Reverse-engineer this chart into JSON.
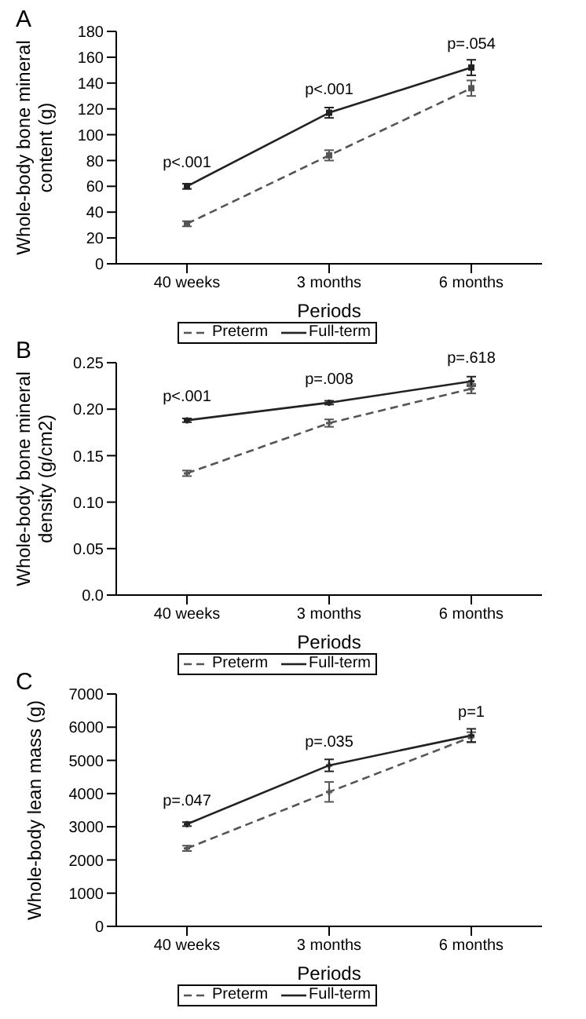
{
  "chart_data": [
    {
      "type": "line",
      "title": "A",
      "xlabel": "Periods",
      "ylabel": "Whole-body bone mineral content (g)",
      "categories": [
        "40 weeks",
        "3 months",
        "6 months"
      ],
      "series": [
        {
          "name": "Preterm",
          "color": "#555555",
          "line_style": "dashed",
          "values": [
            31,
            84,
            136
          ],
          "errors": [
            2,
            4,
            6
          ]
        },
        {
          "name": "Full-term",
          "color": "#222222",
          "line_style": "solid",
          "values": [
            60,
            117,
            152
          ],
          "errors": [
            2,
            4,
            6
          ]
        }
      ],
      "ylim": [
        0,
        180
      ],
      "yticks": [
        0,
        20,
        40,
        60,
        80,
        100,
        120,
        140,
        160,
        180
      ],
      "marker": "square",
      "legend": "bottom",
      "grid": false,
      "annotations": [
        {
          "text": "p<.001",
          "x": "40 weeks",
          "y": 60
        },
        {
          "text": "p<.001",
          "x": "3 months",
          "y": 117
        },
        {
          "text": "p=.054",
          "x": "6 months",
          "y": 152
        }
      ]
    },
    {
      "type": "line",
      "title": "B",
      "xlabel": "Periods",
      "ylabel": "Whole-body bone mineral density (g/cm2)",
      "categories": [
        "40 weeks",
        "3 months",
        "6 months"
      ],
      "series": [
        {
          "name": "Preterm",
          "color": "#555555",
          "line_style": "dashed",
          "values": [
            0.131,
            0.185,
            0.222
          ],
          "errors": [
            0.003,
            0.004,
            0.005
          ]
        },
        {
          "name": "Full-term",
          "color": "#222222",
          "line_style": "solid",
          "values": [
            0.188,
            0.207,
            0.23
          ],
          "errors": [
            0.002,
            0.002,
            0.005
          ]
        }
      ],
      "ylim": [
        0,
        0.25
      ],
      "yticks": [
        {
          "value": 0,
          "label": "0.0"
        },
        0.05,
        {
          "value": 0.1,
          "label": "0.10"
        },
        0.15,
        {
          "value": 0.2,
          "label": "0.20"
        },
        0.25
      ],
      "marker": "cross",
      "legend": "bottom",
      "grid": false,
      "annotations": [
        {
          "text": "p<.001",
          "x": "40 weeks",
          "y": 0.188
        },
        {
          "text": "p=.008",
          "x": "3 months",
          "y": 0.207
        },
        {
          "text": "p=.618",
          "x": "6 months",
          "y": 0.23
        }
      ]
    },
    {
      "type": "line",
      "title": "C",
      "xlabel": "Periods",
      "ylabel": "Whole-body lean mass (g)",
      "categories": [
        "40 weeks",
        "3 months",
        "6 months"
      ],
      "series": [
        {
          "name": "Preterm",
          "color": "#555555",
          "line_style": "dashed",
          "values": [
            2350,
            4050,
            5700
          ],
          "errors": [
            80,
            300,
            150
          ]
        },
        {
          "name": "Full-term",
          "color": "#222222",
          "line_style": "solid",
          "values": [
            3080,
            4850,
            5750
          ],
          "errors": [
            60,
            180,
            200
          ]
        }
      ],
      "ylim": [
        0,
        7000
      ],
      "yticks": [
        0,
        1000,
        2000,
        3000,
        4000,
        5000,
        6000,
        7000
      ],
      "marker": "cross",
      "legend": "bottom",
      "grid": false,
      "annotations": [
        {
          "text": "p=.047",
          "x": "40 weeks",
          "y": 3080
        },
        {
          "text": "p=.035",
          "x": "3 months",
          "y": 4850
        },
        {
          "text": "p=1",
          "x": "6 months",
          "y": 5750
        }
      ]
    }
  ]
}
